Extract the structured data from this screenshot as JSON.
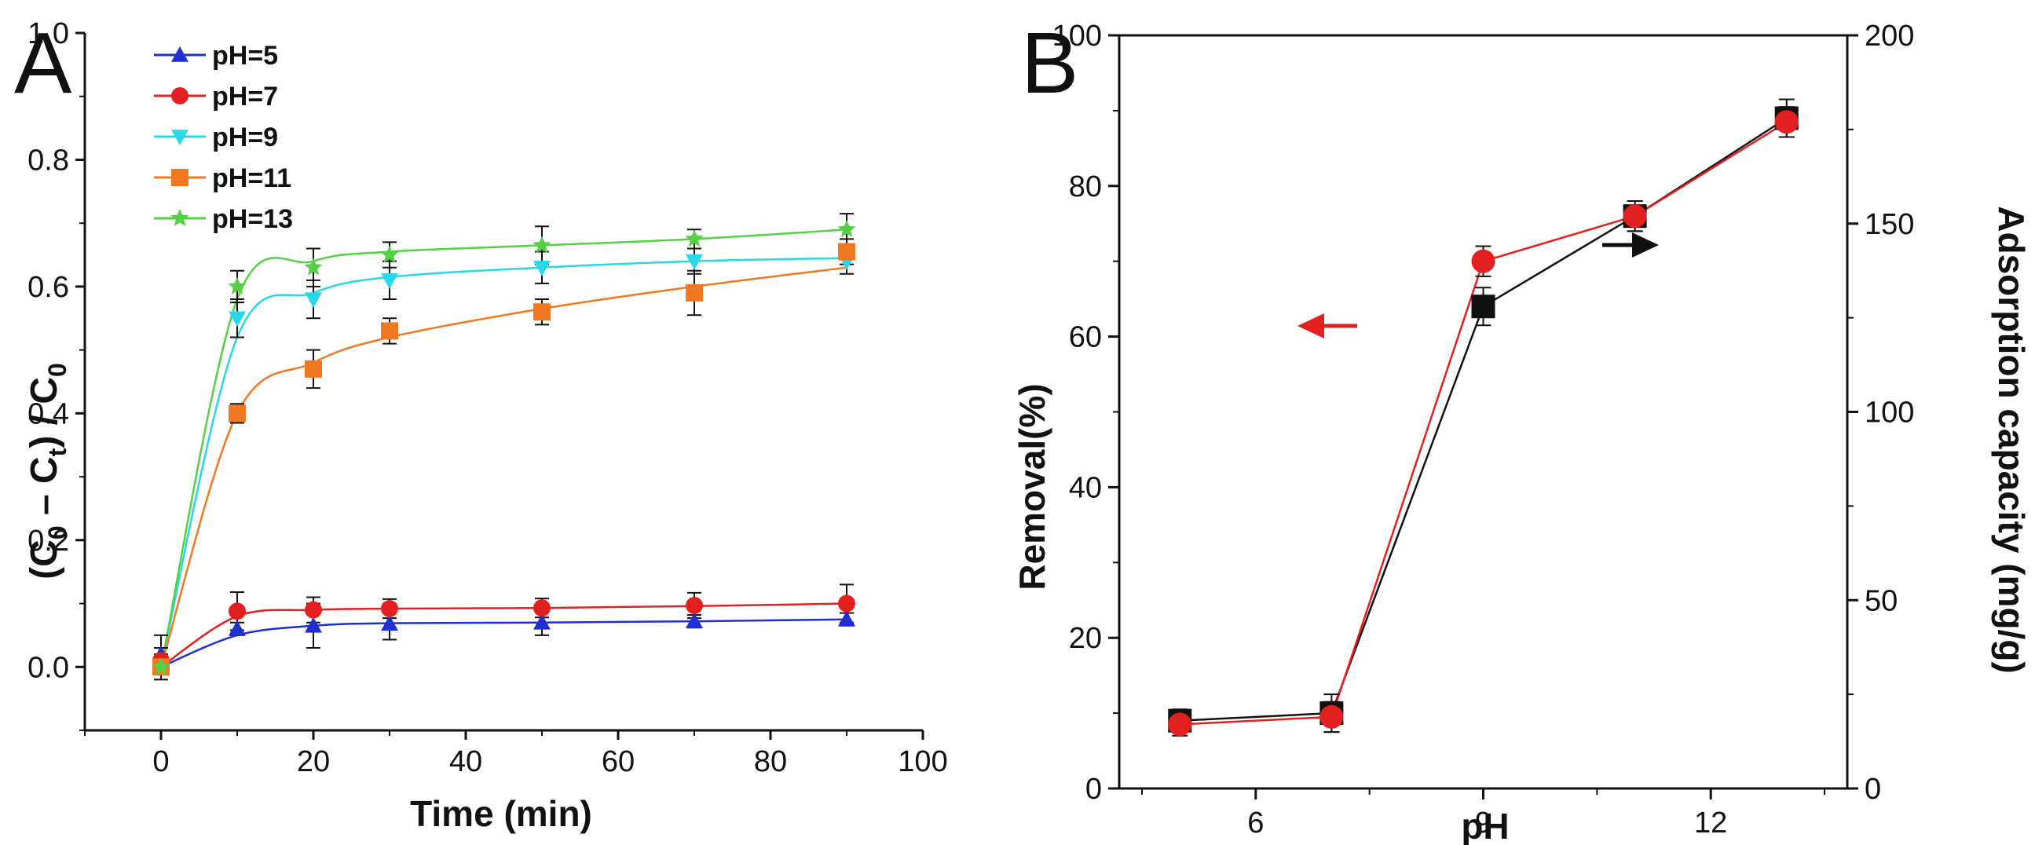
{
  "chart_data": [
    {
      "panel": "A",
      "type": "line",
      "xlabel": "Time (min)",
      "ylabel": {
        "pre": "(C",
        "sub1": "0",
        "mid": " – C",
        "sub2": "t",
        "post": ") / C",
        "sub3": "0"
      },
      "xlim": [
        -10,
        100
      ],
      "ylim": [
        -0.1,
        1.0
      ],
      "xticks": [
        0,
        20,
        40,
        60,
        80,
        100
      ],
      "yticks": [
        0.0,
        0.2,
        0.4,
        0.6,
        0.8,
        1.0
      ],
      "ytick_labels": [
        "0.0",
        "0.2",
        "0.4",
        "0.6",
        "0.8",
        "1.0"
      ],
      "legend_position": "top-left",
      "series": [
        {
          "name": "pH=5",
          "color": "#1f2fd0",
          "marker": "triangle-up",
          "x": [
            0,
            10,
            20,
            30,
            50,
            70,
            90
          ],
          "y": [
            0.02,
            0.06,
            0.065,
            0.068,
            0.07,
            0.072,
            0.075
          ],
          "err": [
            0.03,
            0.01,
            0.035,
            0.025,
            0.02,
            0.01,
            0.01
          ],
          "fit": [
            0.0,
            0.05,
            0.065,
            0.069,
            0.07,
            0.072,
            0.075
          ]
        },
        {
          "name": "pH=7",
          "color": "#e32020",
          "marker": "circle",
          "x": [
            0,
            10,
            20,
            30,
            50,
            70,
            90
          ],
          "y": [
            0.01,
            0.088,
            0.09,
            0.092,
            0.093,
            0.097,
            0.1
          ],
          "err": [
            0.02,
            0.03,
            0.02,
            0.015,
            0.015,
            0.02,
            0.03
          ],
          "fit": [
            0.0,
            0.08,
            0.09,
            0.092,
            0.093,
            0.096,
            0.1
          ]
        },
        {
          "name": "pH=9",
          "color": "#28d8e8",
          "marker": "triangle-down",
          "x": [
            0,
            10,
            20,
            30,
            50,
            70,
            90
          ],
          "y": [
            0.0,
            0.55,
            0.58,
            0.61,
            0.63,
            0.64,
            0.64
          ],
          "err": [
            0.01,
            0.03,
            0.03,
            0.03,
            0.025,
            0.02,
            0.02
          ],
          "fit": [
            0.0,
            0.52,
            0.59,
            0.615,
            0.63,
            0.64,
            0.645
          ]
        },
        {
          "name": "pH=11",
          "color": "#f07820",
          "marker": "square",
          "x": [
            0,
            10,
            20,
            30,
            50,
            70,
            90
          ],
          "y": [
            0.0,
            0.4,
            0.47,
            0.53,
            0.56,
            0.59,
            0.655
          ],
          "err": [
            0.01,
            0.015,
            0.03,
            0.02,
            0.02,
            0.035,
            0.02
          ],
          "fit": [
            0.0,
            0.4,
            0.48,
            0.52,
            0.565,
            0.6,
            0.63
          ]
        },
        {
          "name": "pH=13",
          "color": "#55d045",
          "marker": "star",
          "x": [
            0,
            10,
            20,
            30,
            50,
            70,
            90
          ],
          "y": [
            0.0,
            0.6,
            0.63,
            0.65,
            0.665,
            0.675,
            0.69
          ],
          "err": [
            0.02,
            0.025,
            0.03,
            0.02,
            0.03,
            0.015,
            0.025
          ],
          "fit": [
            0.0,
            0.58,
            0.64,
            0.655,
            0.665,
            0.675,
            0.69
          ]
        }
      ]
    },
    {
      "panel": "B",
      "type": "line",
      "xlabel": "pH",
      "ylabel": "Removal(%)",
      "ylabel_right": "Adsorption capacity (mg/g)",
      "xlim": [
        4.2,
        13.8
      ],
      "ylim": [
        0,
        100
      ],
      "ylim_right": [
        0,
        200
      ],
      "xticks": [
        6,
        9,
        12
      ],
      "yticks": [
        0,
        20,
        40,
        60,
        80,
        100
      ],
      "yticks_right": [
        0,
        50,
        100,
        150,
        200
      ],
      "series": [
        {
          "name": "Removal(%)",
          "axis": "left",
          "color": "#111111",
          "marker": "square",
          "x": [
            5,
            7,
            9,
            11,
            13
          ],
          "y": [
            9,
            10,
            64,
            76,
            89
          ],
          "err": [
            1.5,
            2.5,
            2.5,
            2.0,
            2.5
          ]
        },
        {
          "name": "Adsorption capacity (mg/g)",
          "axis": "right",
          "color": "#e32020",
          "marker": "circle",
          "x": [
            5,
            7,
            9,
            11,
            13
          ],
          "y": [
            17,
            19,
            140,
            152,
            177
          ],
          "err": [
            3,
            4,
            4,
            4,
            4
          ]
        }
      ],
      "annotations": [
        {
          "text": "arrow-left-red",
          "points_to": "left axis"
        },
        {
          "text": "arrow-right-black",
          "points_to": "right axis"
        }
      ]
    }
  ]
}
